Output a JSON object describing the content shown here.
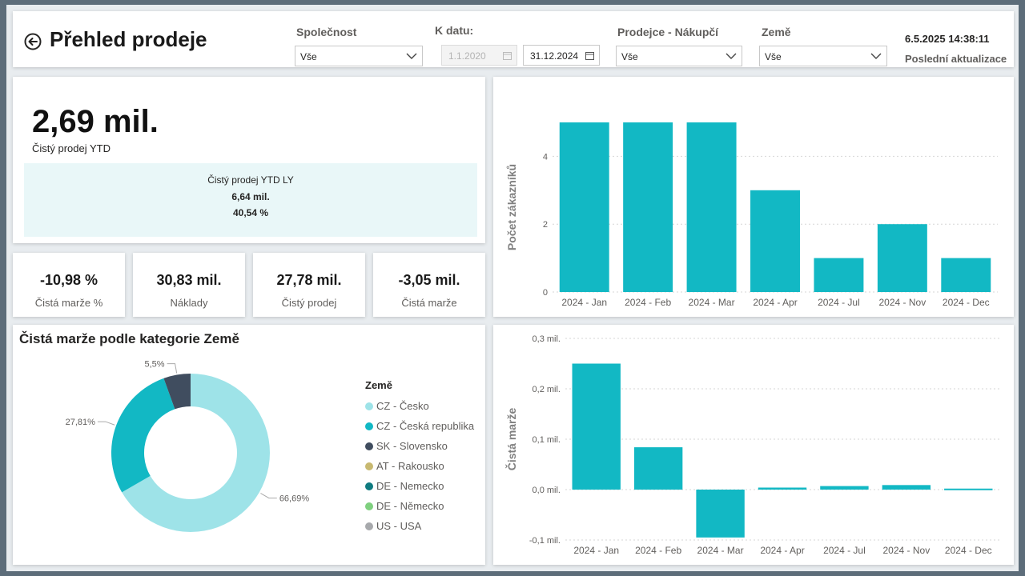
{
  "header": {
    "title": "Přehled prodeje",
    "filters": {
      "company": {
        "label": "Společnost",
        "value": "Vše"
      },
      "date": {
        "label": "K datu:",
        "from": "1.1.2020",
        "to": "31.12.2024"
      },
      "seller": {
        "label": "Prodejce - Nákupčí",
        "value": "Vše"
      },
      "country": {
        "label": "Země",
        "value": "Vše"
      }
    },
    "refresh_time": "6.5.2025 14:38:11",
    "refresh_label": "Poslední aktualizace"
  },
  "kpi_main": {
    "value": "2,69 mil.",
    "caption": "Čistý prodej YTD",
    "ly_title": "Čistý prodej YTD LY",
    "ly_value": "6,64 mil.",
    "ly_pct": "40,54 %"
  },
  "kpis": [
    {
      "value": "-10,98 %",
      "caption": "Čistá marže %"
    },
    {
      "value": "30,83 mil.",
      "caption": "Náklady"
    },
    {
      "value": "27,78 mil.",
      "caption": "Čistý prodej"
    },
    {
      "value": "-3,05 mil.",
      "caption": "Čistá marže"
    }
  ],
  "colors": {
    "accent": "#12b8c4",
    "cz_cesko": "#9ee3e8",
    "cz_ceska": "#12b8c4",
    "sk": "#404d5f",
    "at": "#c8b971",
    "de_nemecko": "#0f7b80",
    "de_nemecko2": "#7fd07f",
    "us": "#a7a9ac"
  },
  "chart_data": [
    {
      "type": "bar",
      "title": "",
      "xlabel": "",
      "ylabel": "Počet zákazníků",
      "categories": [
        "2024 - Jan",
        "2024 - Feb",
        "2024 - Mar",
        "2024 - Apr",
        "2024 - Jul",
        "2024 - Nov",
        "2024 - Dec"
      ],
      "values": [
        5,
        5,
        5,
        3,
        1,
        2,
        1
      ],
      "ylim": [
        0,
        5
      ],
      "yticks": [
        0,
        2,
        4
      ],
      "ytick_labels": [
        "0",
        "2",
        "4"
      ]
    },
    {
      "type": "bar",
      "title": "",
      "xlabel": "",
      "ylabel": "Čistá marže",
      "categories": [
        "2024 - Jan",
        "2024 - Feb",
        "2024 - Mar",
        "2024 - Apr",
        "2024 - Jul",
        "2024 - Nov",
        "2024 - Dec"
      ],
      "values": [
        0.25,
        0.084,
        -0.095,
        0.004,
        0.007,
        0.009,
        0.002
      ],
      "ylim": [
        -0.1,
        0.3
      ],
      "yticks": [
        -0.1,
        0.0,
        0.1,
        0.2,
        0.3
      ],
      "ytick_labels": [
        "-0,1 mil.",
        "0,0 mil.",
        "0,1 mil.",
        "0,2 mil.",
        "0,3 mil."
      ]
    },
    {
      "type": "pie",
      "title": "Čistá marže podle kategorie Země",
      "legend_title": "Země",
      "categories": [
        "CZ - Česko",
        "CZ - Česká republika",
        "SK - Slovensko",
        "AT - Rakousko",
        "DE - Nemecko",
        "DE - Německo",
        "US - USA"
      ],
      "values": [
        66.69,
        27.81,
        5.5,
        0,
        0,
        0,
        0
      ],
      "labels": [
        "66,69%",
        "27,81%",
        "5,5%",
        "",
        "",
        "",
        ""
      ],
      "colors": [
        "#9ee3e8",
        "#12b8c4",
        "#404d5f",
        "#c8b971",
        "#0f7b80",
        "#7fd07f",
        "#a7a9ac"
      ]
    }
  ]
}
